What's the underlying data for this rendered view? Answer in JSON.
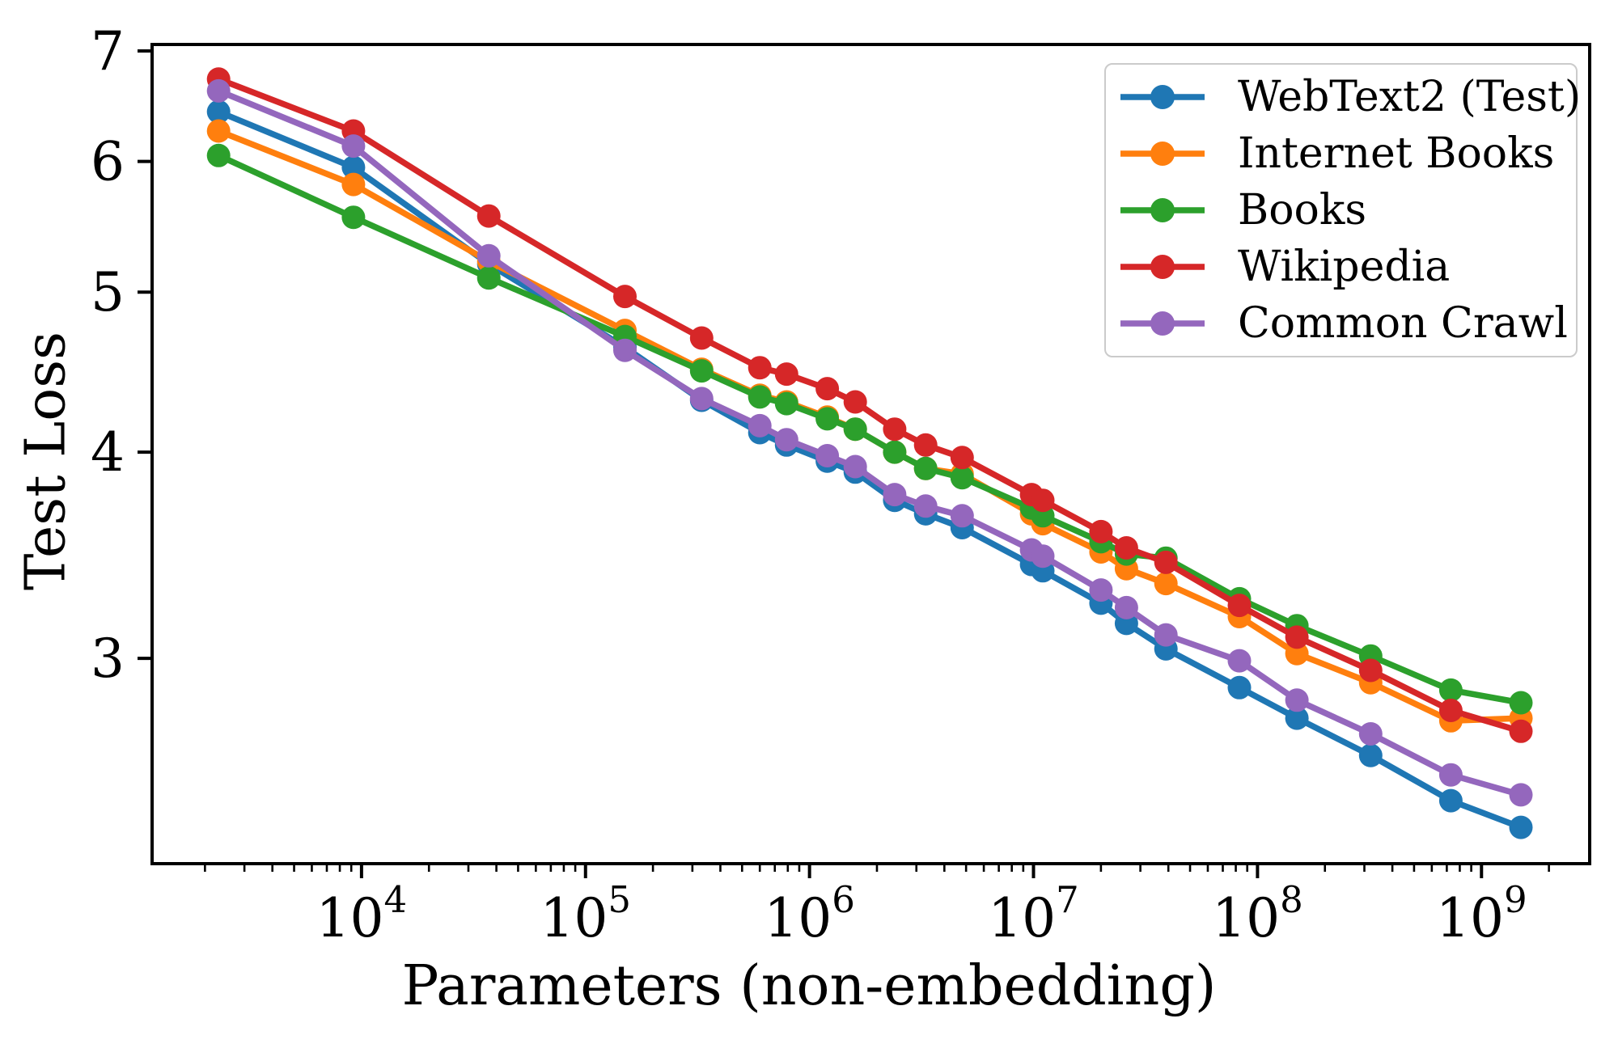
{
  "figure": {
    "background_color": "#ffffff",
    "axis_color": "#000000"
  },
  "chart_data": {
    "type": "line",
    "title": "",
    "xlabel": "Parameters (non-embedding)",
    "ylabel": "Test Loss",
    "x_scale": "log",
    "y_scale": "log",
    "grid": false,
    "legend_position": "upper right",
    "x_axis": {
      "tick_base": "10",
      "tick_exponents": [
        4,
        5,
        6,
        7,
        8,
        9
      ],
      "minor_tick_multiples": [
        2,
        3,
        4,
        5,
        6,
        7,
        8,
        9
      ],
      "range_log10": [
        3.065,
        9.483
      ]
    },
    "y_axis": {
      "ticks": [
        7,
        6,
        5,
        4,
        3
      ],
      "range": [
        2.253,
        7.063
      ]
    },
    "x": [
      2300,
      9200,
      37000,
      150000,
      330000,
      600000,
      790000,
      1200000,
      1600000,
      2400000,
      3300000,
      4800000,
      9800000,
      11000000,
      20000000,
      26000000,
      39000000,
      83000000,
      150000000,
      320000000,
      730000000,
      1500000000
    ],
    "series": [
      {
        "name": "WebText2 (Test)",
        "color": "#1f77b4",
        "values": [
          6.43,
          5.95,
          5.2,
          4.63,
          4.3,
          4.11,
          4.04,
          3.95,
          3.89,
          3.74,
          3.67,
          3.6,
          3.42,
          3.39,
          3.24,
          3.15,
          3.04,
          2.88,
          2.76,
          2.62,
          2.46,
          2.37
        ]
      },
      {
        "name": "Internet Books",
        "color": "#ff7f0e",
        "values": [
          6.26,
          5.81,
          5.22,
          4.74,
          4.49,
          4.33,
          4.29,
          4.2,
          4.13,
          4.0,
          3.91,
          3.88,
          3.67,
          3.62,
          3.48,
          3.4,
          3.33,
          3.18,
          3.02,
          2.9,
          2.75,
          2.76
        ]
      },
      {
        "name": "Books",
        "color": "#2ca02c",
        "values": [
          6.05,
          5.55,
          5.1,
          4.7,
          4.48,
          4.32,
          4.28,
          4.19,
          4.13,
          4.0,
          3.91,
          3.86,
          3.7,
          3.66,
          3.53,
          3.47,
          3.45,
          3.26,
          3.14,
          3.01,
          2.87,
          2.82
        ]
      },
      {
        "name": "Wikipedia",
        "color": "#d62728",
        "values": [
          6.73,
          6.26,
          5.56,
          4.97,
          4.69,
          4.5,
          4.46,
          4.37,
          4.29,
          4.13,
          4.04,
          3.97,
          3.77,
          3.74,
          3.58,
          3.5,
          3.43,
          3.23,
          3.09,
          2.95,
          2.79,
          2.71
        ]
      },
      {
        "name": "Common Crawl",
        "color": "#9467bd",
        "values": [
          6.62,
          6.13,
          5.26,
          4.61,
          4.31,
          4.15,
          4.07,
          3.98,
          3.92,
          3.77,
          3.71,
          3.66,
          3.49,
          3.46,
          3.3,
          3.22,
          3.1,
          2.99,
          2.83,
          2.7,
          2.55,
          2.48
        ]
      }
    ]
  }
}
